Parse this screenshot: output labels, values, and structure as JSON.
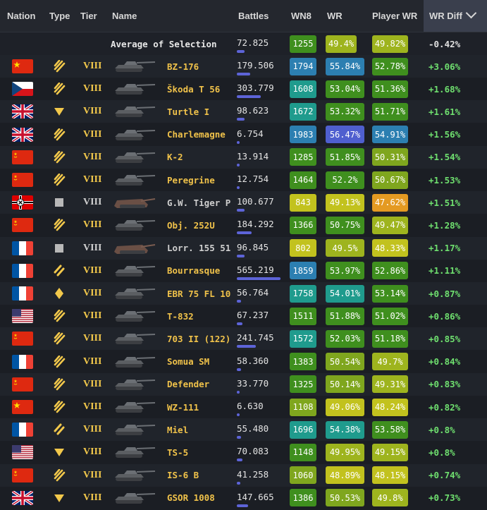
{
  "headers": {
    "nation": "Nation",
    "type": "Type",
    "tier": "Tier",
    "name": "Name",
    "battles": "Battles",
    "wn8": "WN8",
    "wr": "WR",
    "player_wr": "Player WR",
    "wr_diff": "WR Diff"
  },
  "colors": {
    "gold_text": "#f0c24a",
    "positive_diff": "#6fe06f",
    "negative_diff": "#e0e0e0",
    "battles_bar": "#5d64d8",
    "wn8_scale": {
      "purple": "#4f5fcf",
      "blue": "#2c7fb1",
      "teal": "#1f9b8d",
      "green": "#3f8f1e",
      "yellow": "#c2c21e",
      "orange": "#e49a22"
    }
  },
  "average": {
    "label": "Average of Selection",
    "battles": "72.825",
    "battles_fraction": 0.07,
    "wn8": "1255",
    "wr": "49.4%",
    "player_wr": "49.82%",
    "wr_diff": "-0.42%"
  },
  "rows": [
    {
      "nation": "china",
      "type": "heavy",
      "tier": "VIII",
      "name": "BZ-176",
      "premium": true,
      "battles": "179.506",
      "battles_fraction": 0.12,
      "wn8": "1794",
      "wr": "55.84%",
      "player_wr": "52.78%",
      "wr_diff": "+3.06%",
      "wn8_color": "#2c7fb1",
      "wr_color": "#2c7fb1",
      "pwr_color": "#3f8f1e"
    },
    {
      "nation": "czech",
      "type": "heavy",
      "tier": "VIII",
      "name": "Škoda T 56",
      "premium": true,
      "battles": "303.779",
      "battles_fraction": 0.21,
      "wn8": "1608",
      "wr": "53.04%",
      "player_wr": "51.36%",
      "wr_diff": "+1.68%",
      "wn8_color": "#1f9b8d",
      "wr_color": "#3f8f1e",
      "pwr_color": "#3f8f1e"
    },
    {
      "nation": "uk",
      "type": "td",
      "tier": "VIII",
      "name": "Turtle I",
      "premium": true,
      "battles": "98.623",
      "battles_fraction": 0.07,
      "wn8": "1672",
      "wr": "53.32%",
      "player_wr": "51.71%",
      "wr_diff": "+1.61%",
      "wn8_color": "#1f9b8d",
      "wr_color": "#3f8f1e",
      "pwr_color": "#3f8f1e"
    },
    {
      "nation": "uk",
      "type": "heavy",
      "tier": "VIII",
      "name": "Charlemagne",
      "premium": true,
      "battles": "6.754",
      "battles_fraction": 0.01,
      "wn8": "1983",
      "wr": "56.47%",
      "player_wr": "54.91%",
      "wr_diff": "+1.56%",
      "wn8_color": "#2c7fb1",
      "wr_color": "#4f5fcf",
      "pwr_color": "#2c7fb1"
    },
    {
      "nation": "ussr",
      "type": "heavy",
      "tier": "VIII",
      "name": "K-2",
      "premium": true,
      "battles": "13.914",
      "battles_fraction": 0.01,
      "wn8": "1285",
      "wr": "51.85%",
      "player_wr": "50.31%",
      "wr_diff": "+1.54%",
      "wn8_color": "#3f8f1e",
      "wr_color": "#3f8f1e",
      "pwr_color": "#7fa61e"
    },
    {
      "nation": "ussr",
      "type": "heavy",
      "tier": "VIII",
      "name": "Peregrine",
      "premium": true,
      "battles": "12.754",
      "battles_fraction": 0.01,
      "wn8": "1464",
      "wr": "52.2%",
      "player_wr": "50.67%",
      "wr_diff": "+1.53%",
      "wn8_color": "#3f8f1e",
      "wr_color": "#3f8f1e",
      "pwr_color": "#7fa61e"
    },
    {
      "nation": "germany",
      "type": "spg",
      "tier": "VIII",
      "name": "G.W. Tiger P",
      "premium": false,
      "battles": "100.677",
      "battles_fraction": 0.07,
      "wn8": "843",
      "wr": "49.13%",
      "player_wr": "47.62%",
      "wr_diff": "+1.51%",
      "wn8_color": "#c2c21e",
      "wr_color": "#c2c21e",
      "pwr_color": "#e49a22"
    },
    {
      "nation": "ussr",
      "type": "heavy",
      "tier": "VIII",
      "name": "Obj. 252U",
      "premium": true,
      "battles": "184.292",
      "battles_fraction": 0.13,
      "wn8": "1366",
      "wr": "50.75%",
      "player_wr": "49.47%",
      "wr_diff": "+1.28%",
      "wn8_color": "#3f8f1e",
      "wr_color": "#3f8f1e",
      "pwr_color": "#9eb41e"
    },
    {
      "nation": "france",
      "type": "spg",
      "tier": "VIII",
      "name": "Lorr. 155 51",
      "premium": false,
      "battles": "96.845",
      "battles_fraction": 0.07,
      "wn8": "802",
      "wr": "49.5%",
      "player_wr": "48.33%",
      "wr_diff": "+1.17%",
      "wn8_color": "#c2c21e",
      "wr_color": "#9eb41e",
      "pwr_color": "#c2c21e"
    },
    {
      "nation": "france",
      "type": "medium",
      "tier": "VIII",
      "name": "Bourrasque",
      "premium": true,
      "battles": "565.219",
      "battles_fraction": 0.39,
      "wn8": "1859",
      "wr": "53.97%",
      "player_wr": "52.86%",
      "wr_diff": "+1.11%",
      "wn8_color": "#2c7fb1",
      "wr_color": "#3f8f1e",
      "pwr_color": "#3f8f1e"
    },
    {
      "nation": "france",
      "type": "light",
      "tier": "VIII",
      "name": "EBR 75 FL 10",
      "premium": true,
      "battles": "56.764",
      "battles_fraction": 0.04,
      "wn8": "1758",
      "wr": "54.01%",
      "player_wr": "53.14%",
      "wr_diff": "+0.87%",
      "wn8_color": "#1f9b8d",
      "wr_color": "#1f9b8d",
      "pwr_color": "#3f8f1e"
    },
    {
      "nation": "usa",
      "type": "heavy",
      "tier": "VIII",
      "name": "T-832",
      "premium": true,
      "battles": "67.237",
      "battles_fraction": 0.05,
      "wn8": "1511",
      "wr": "51.88%",
      "player_wr": "51.02%",
      "wr_diff": "+0.86%",
      "wn8_color": "#3f8f1e",
      "wr_color": "#3f8f1e",
      "pwr_color": "#3f8f1e"
    },
    {
      "nation": "ussr",
      "type": "heavy",
      "tier": "VIII",
      "name": "703 II (122)",
      "premium": true,
      "battles": "241.745",
      "battles_fraction": 0.17,
      "wn8": "1572",
      "wr": "52.03%",
      "player_wr": "51.18%",
      "wr_diff": "+0.85%",
      "wn8_color": "#1f9b8d",
      "wr_color": "#3f8f1e",
      "pwr_color": "#3f8f1e"
    },
    {
      "nation": "france",
      "type": "heavy",
      "tier": "VIII",
      "name": "Somua SM",
      "premium": true,
      "battles": "58.360",
      "battles_fraction": 0.04,
      "wn8": "1383",
      "wr": "50.54%",
      "player_wr": "49.7%",
      "wr_diff": "+0.84%",
      "wn8_color": "#3f8f1e",
      "wr_color": "#7fa61e",
      "pwr_color": "#9eb41e"
    },
    {
      "nation": "ussr",
      "type": "heavy",
      "tier": "VIII",
      "name": "Defender",
      "premium": true,
      "battles": "33.770",
      "battles_fraction": 0.02,
      "wn8": "1325",
      "wr": "50.14%",
      "player_wr": "49.31%",
      "wr_diff": "+0.83%",
      "wn8_color": "#3f8f1e",
      "wr_color": "#7fa61e",
      "pwr_color": "#9eb41e"
    },
    {
      "nation": "china",
      "type": "heavy",
      "tier": "VIII",
      "name": "WZ-111",
      "premium": true,
      "battles": "6.630",
      "battles_fraction": 0.01,
      "wn8": "1108",
      "wr": "49.06%",
      "player_wr": "48.24%",
      "wr_diff": "+0.82%",
      "wn8_color": "#7fa61e",
      "wr_color": "#c2c21e",
      "pwr_color": "#c2c21e"
    },
    {
      "nation": "france",
      "type": "medium",
      "tier": "VIII",
      "name": "Miel",
      "premium": true,
      "battles": "55.480",
      "battles_fraction": 0.04,
      "wn8": "1696",
      "wr": "54.38%",
      "player_wr": "53.58%",
      "wr_diff": "+0.8%",
      "wn8_color": "#1f9b8d",
      "wr_color": "#1f9b8d",
      "pwr_color": "#3f8f1e"
    },
    {
      "nation": "usa",
      "type": "td",
      "tier": "VIII",
      "name": "TS-5",
      "premium": true,
      "battles": "70.083",
      "battles_fraction": 0.05,
      "wn8": "1148",
      "wr": "49.95%",
      "player_wr": "49.15%",
      "wr_diff": "+0.8%",
      "wn8_color": "#3f8f1e",
      "wr_color": "#9eb41e",
      "pwr_color": "#9eb41e"
    },
    {
      "nation": "ussr",
      "type": "heavy",
      "tier": "VIII",
      "name": "IS-6 B",
      "premium": true,
      "battles": "41.258",
      "battles_fraction": 0.03,
      "wn8": "1060",
      "wr": "48.89%",
      "player_wr": "48.15%",
      "wr_diff": "+0.74%",
      "wn8_color": "#7fa61e",
      "wr_color": "#c2c21e",
      "pwr_color": "#c2c21e"
    },
    {
      "nation": "uk",
      "type": "td",
      "tier": "VIII",
      "name": "GSOR 1008",
      "premium": true,
      "battles": "147.665",
      "battles_fraction": 0.1,
      "wn8": "1386",
      "wr": "50.53%",
      "player_wr": "49.8%",
      "wr_diff": "+0.73%",
      "wn8_color": "#3f8f1e",
      "wr_color": "#7fa61e",
      "pwr_color": "#9eb41e"
    }
  ]
}
